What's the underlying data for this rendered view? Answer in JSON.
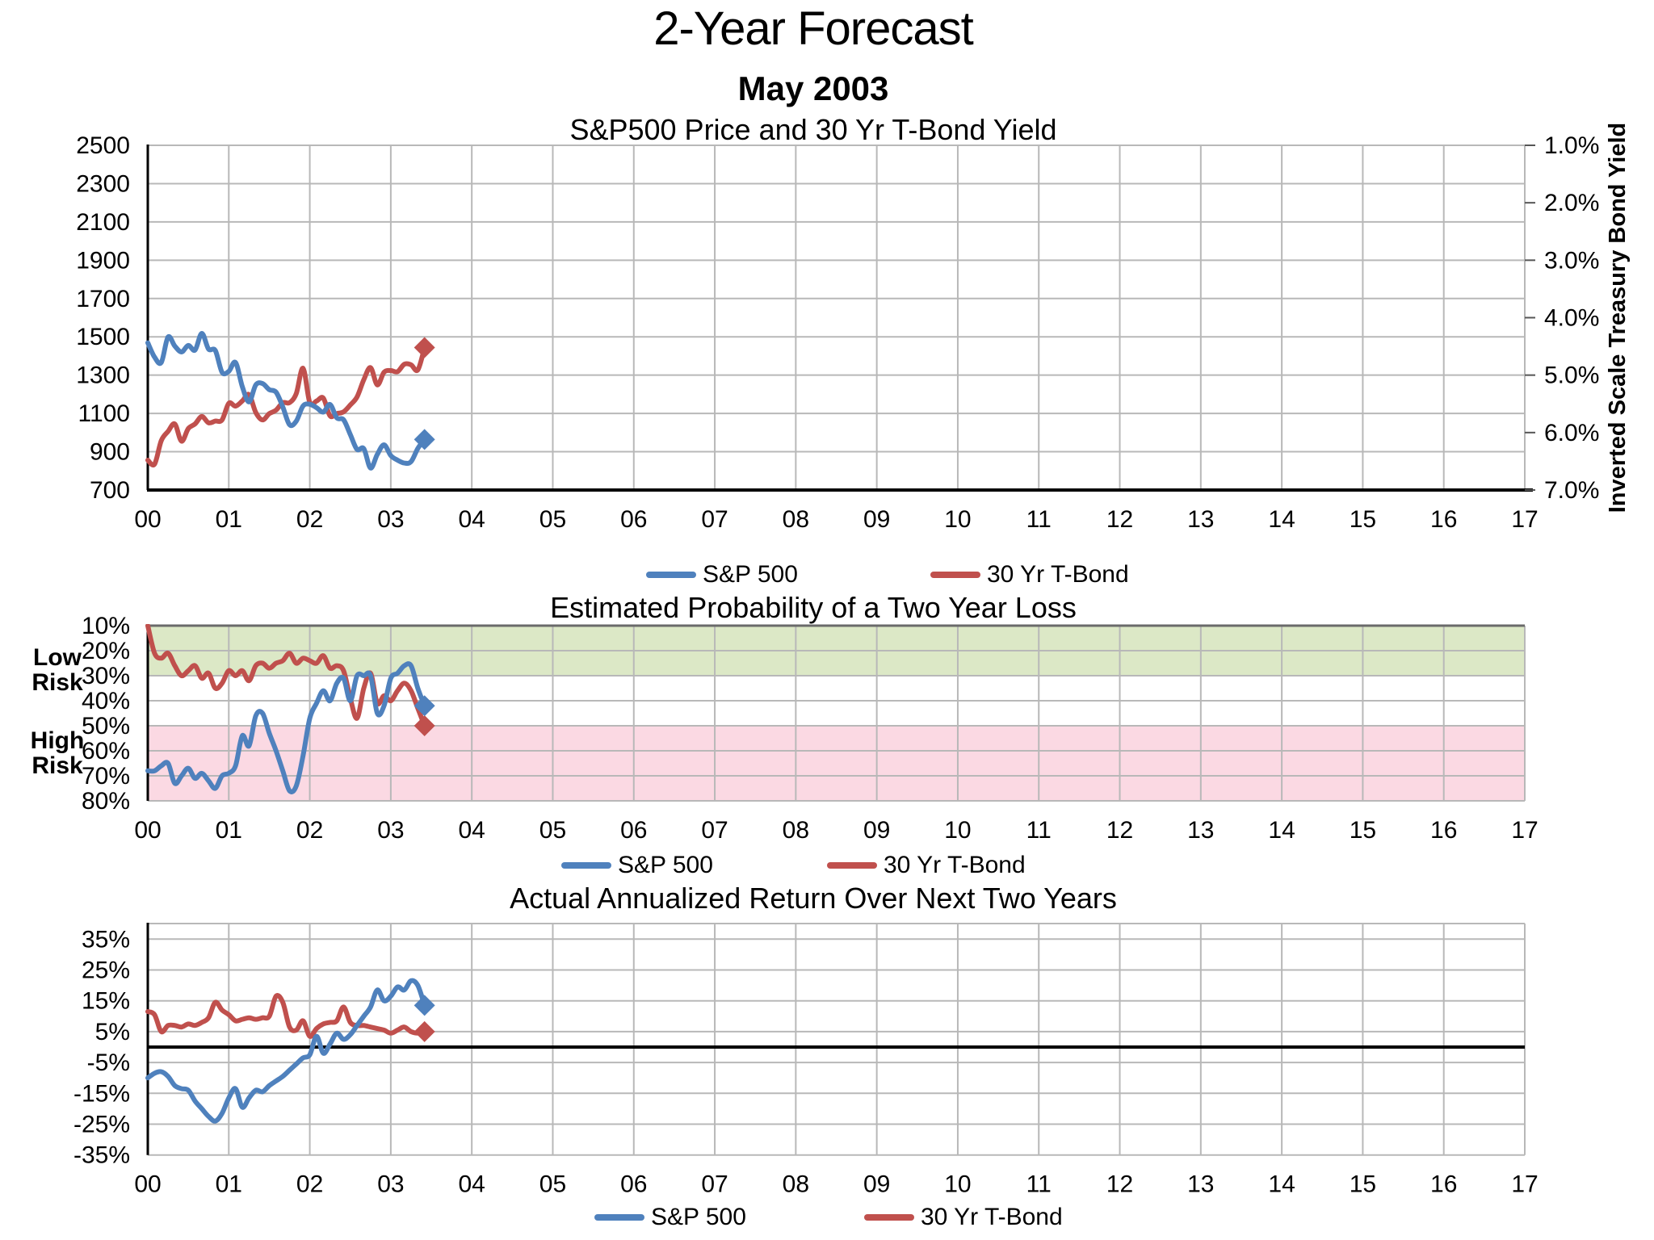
{
  "header": {
    "title": "2-Year Forecast",
    "subtitle": "May 2003"
  },
  "legend": {
    "sp500": "S&P 500",
    "tbond": "30 Yr T-Bond"
  },
  "colors": {
    "sp500": "#4F81BD",
    "tbond": "#C0504D",
    "low_risk_band": "#DCE8C6",
    "high_risk_band": "#FBD9E3",
    "gridline": "#B8B8B8",
    "chart2_top_border": "#6A6A6A",
    "axis": "#000000"
  },
  "x_axis": {
    "tick_labels": [
      "00",
      "01",
      "02",
      "03",
      "04",
      "05",
      "06",
      "07",
      "08",
      "09",
      "10",
      "11",
      "12",
      "13",
      "14",
      "15",
      "16",
      "17"
    ],
    "points_per_year": 12,
    "data_ends_at_label": "03"
  },
  "chart_data": [
    {
      "type": "line",
      "title": "S&P500 Price and 30 Yr T-Bond Yield",
      "left_axis": {
        "ticks": [
          "2500",
          "2300",
          "2100",
          "1900",
          "1700",
          "1500",
          "1300",
          "1100",
          "900",
          "700"
        ]
      },
      "right_axis": {
        "label": "Inverted Scale Treasury Bond Yield",
        "ticks": [
          "1.0%",
          "2.0%",
          "3.0%",
          "4.0%",
          "5.0%",
          "6.0%",
          "7.0%"
        ],
        "inverted": true
      },
      "end_marker": "diamond",
      "series": [
        {
          "name": "S&P 500",
          "axis": "left",
          "color_key": "sp500",
          "values": [
            1469,
            1394,
            1366,
            1499,
            1452,
            1421,
            1455,
            1431,
            1518,
            1436,
            1429,
            1315,
            1320,
            1366,
            1240,
            1160,
            1249,
            1256,
            1224,
            1211,
            1134,
            1041,
            1060,
            1139,
            1148,
            1130,
            1107,
            1147,
            1077,
            1067,
            990,
            912,
            916,
            815,
            886,
            936,
            880,
            856,
            841,
            848,
            917,
            964
          ]
        },
        {
          "name": "30 Yr T-Bond",
          "axis": "right",
          "color_key": "tbond",
          "values": [
            6.48,
            6.55,
            6.14,
            5.98,
            5.85,
            6.15,
            5.93,
            5.85,
            5.72,
            5.83,
            5.8,
            5.78,
            5.49,
            5.54,
            5.45,
            5.34,
            5.65,
            5.78,
            5.67,
            5.61,
            5.48,
            5.48,
            5.32,
            4.88,
            5.48,
            5.45,
            5.4,
            5.71,
            5.67,
            5.64,
            5.52,
            5.38,
            5.08,
            4.87,
            5.17,
            4.95,
            4.92,
            4.94,
            4.81,
            4.82,
            4.91,
            4.52
          ]
        }
      ]
    },
    {
      "type": "line",
      "title": "Estimated Probability of a Two Year Loss",
      "y_axis": {
        "ticks": [
          "10%",
          "20%",
          "30%",
          "40%",
          "50%",
          "60%",
          "70%",
          "80%"
        ],
        "inverted": true
      },
      "bands": [
        {
          "label": "Low Risk",
          "from_pct": 10,
          "to_pct": 30,
          "color_key": "low_risk_band"
        },
        {
          "label": "High Risk",
          "from_pct": 50,
          "to_pct": 80,
          "color_key": "high_risk_band"
        }
      ],
      "end_marker": "diamond",
      "series": [
        {
          "name": "S&P 500",
          "color_key": "sp500",
          "values": [
            68,
            68,
            66,
            65,
            73,
            70,
            67,
            71,
            69,
            72,
            75,
            70,
            69,
            66,
            54,
            58,
            46,
            45,
            53,
            60,
            68,
            76,
            74,
            62,
            47,
            41,
            36,
            40,
            33,
            31,
            40,
            30,
            30,
            30,
            45,
            42,
            31,
            29,
            26,
            26,
            35,
            42
          ]
        },
        {
          "name": "30 Yr T-Bond",
          "color_key": "tbond",
          "values": [
            10,
            21,
            23,
            21,
            26,
            30,
            28,
            26,
            31,
            29,
            35,
            33,
            28,
            30,
            28,
            32,
            26,
            25,
            27,
            25,
            24,
            21,
            25,
            23,
            24,
            25,
            22,
            27,
            26,
            28,
            39,
            47,
            35,
            29,
            41,
            38,
            40,
            36,
            33,
            36,
            43,
            50
          ]
        }
      ]
    },
    {
      "type": "line",
      "title": "Actual Annualized Return Over Next Two Years",
      "y_axis": {
        "ticks": [
          "35%",
          "25%",
          "15%",
          "5%",
          "-5%",
          "-15%",
          "-25%",
          "-35%"
        ],
        "zero_line": true
      },
      "end_marker": "diamond",
      "series": [
        {
          "name": "S&P 500",
          "color_key": "sp500",
          "values": [
            -10,
            -8.5,
            -8,
            -9.5,
            -12.5,
            -13.5,
            -14,
            -17.5,
            -20,
            -22.5,
            -24,
            -21.5,
            -16.5,
            -13.5,
            -19.5,
            -16.5,
            -14,
            -14.5,
            -12.5,
            -11,
            -9.5,
            -7.5,
            -5.5,
            -3.5,
            -2.5,
            3.5,
            -2,
            1,
            4.5,
            2.5,
            4,
            7,
            10,
            13,
            18.5,
            15,
            16.5,
            19.5,
            18.5,
            21.5,
            20,
            13.5
          ]
        },
        {
          "name": "30 Yr T-Bond",
          "color_key": "tbond",
          "values": [
            11.5,
            10.5,
            5,
            7,
            7,
            6.5,
            7.5,
            7,
            8,
            9.5,
            14.5,
            12,
            10.5,
            8.5,
            9,
            9.5,
            9,
            9.5,
            10,
            16.5,
            14.5,
            6.5,
            5.5,
            8.5,
            3.5,
            6,
            7.5,
            8,
            8.5,
            13,
            8,
            7,
            7,
            6.5,
            6,
            5.5,
            4.5,
            5.5,
            6.5,
            5,
            4.5,
            5
          ]
        }
      ]
    }
  ]
}
